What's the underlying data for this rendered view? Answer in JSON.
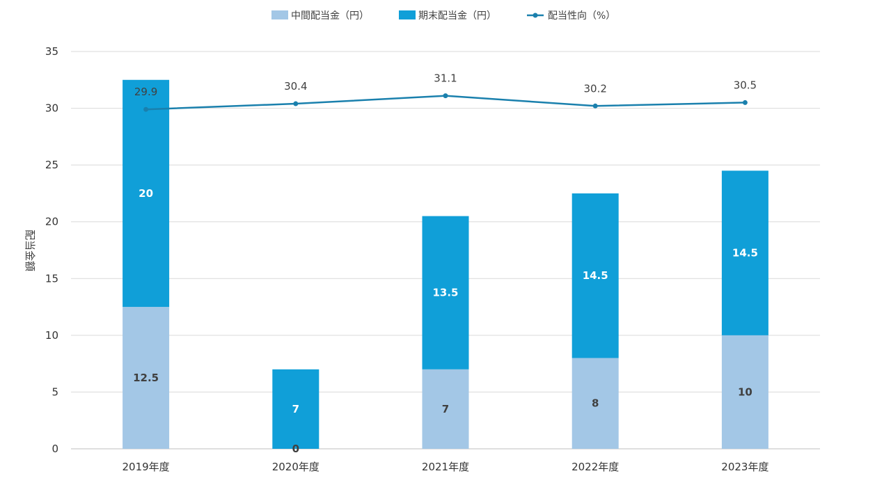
{
  "chart_data": {
    "type": "bar",
    "stacked": true,
    "categories": [
      "2019年度",
      "2020年度",
      "2021年度",
      "2022年度",
      "2023年度"
    ],
    "series": [
      {
        "name": "中間配当金（円）",
        "type": "bar",
        "color": "#a3c7e6",
        "values": [
          12.5,
          0,
          7,
          8,
          10
        ],
        "value_labels": [
          "12.5",
          "0",
          "7",
          "8",
          "10"
        ]
      },
      {
        "name": "期末配当金（円）",
        "type": "bar",
        "color": "#109fd8",
        "values": [
          20,
          7,
          13.5,
          14.5,
          14.5
        ],
        "value_labels": [
          "20",
          "7",
          "13.5",
          "14.5",
          "14.5"
        ]
      },
      {
        "name": "配当性向（%）",
        "type": "line",
        "color": "#1a80ad",
        "values": [
          29.9,
          30.4,
          31.1,
          30.2,
          30.5
        ],
        "value_labels": [
          "29.9",
          "30.4",
          "31.1",
          "30.2",
          "30.5"
        ]
      }
    ],
    "ylabel": "配当金額",
    "ylim": [
      0,
      35
    ],
    "yticks": [
      "0",
      "5",
      "10",
      "15",
      "20",
      "25",
      "30",
      "35"
    ],
    "grid": true,
    "legend_position": "top"
  }
}
